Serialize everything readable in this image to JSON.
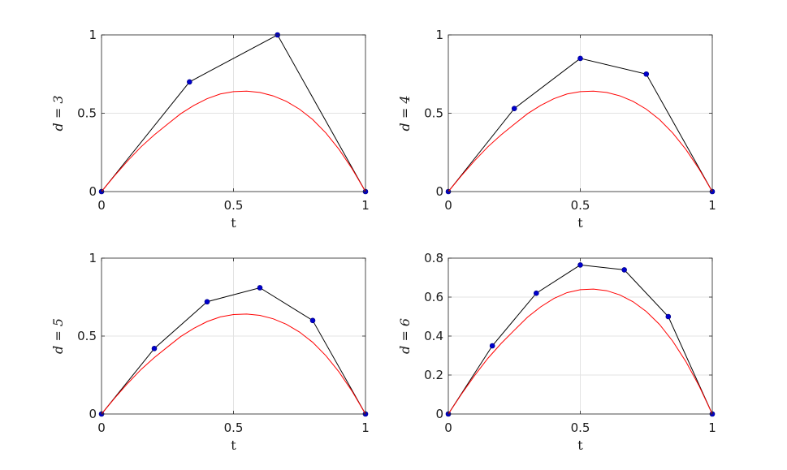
{
  "chart_data": [
    {
      "type": "line",
      "xlabel": "t",
      "ylabel": "d = 3",
      "xlim": [
        0,
        1
      ],
      "ylim": [
        0,
        1
      ],
      "xticks": [
        "0",
        "0.5",
        "1"
      ],
      "yticks": [
        "0",
        "0.5",
        "1"
      ],
      "grid": true,
      "series": [
        {
          "color": "#000000",
          "marker_color": "#0000cc",
          "x": [
            0,
            0.3333,
            0.6667,
            1
          ],
          "y": [
            0,
            0.7,
            1.0,
            0
          ]
        },
        {
          "color": "#ff0000",
          "x": [
            0,
            0.05,
            0.1,
            0.15,
            0.2,
            0.25,
            0.3,
            0.35,
            0.4,
            0.45,
            0.5,
            0.55,
            0.6,
            0.65,
            0.7,
            0.75,
            0.8,
            0.85,
            0.9,
            0.95,
            1
          ],
          "y": [
            0,
            0.102,
            0.198,
            0.286,
            0.362,
            0.43,
            0.497,
            0.55,
            0.593,
            0.623,
            0.638,
            0.641,
            0.633,
            0.611,
            0.576,
            0.526,
            0.46,
            0.374,
            0.269,
            0.144,
            0
          ]
        }
      ]
    },
    {
      "type": "line",
      "xlabel": "t",
      "ylabel": "d = 4",
      "xlim": [
        0,
        1
      ],
      "ylim": [
        0,
        1
      ],
      "xticks": [
        "0",
        "0.5",
        "1"
      ],
      "yticks": [
        "0",
        "0.5",
        "1"
      ],
      "grid": true,
      "series": [
        {
          "color": "#000000",
          "marker_color": "#0000cc",
          "x": [
            0,
            0.25,
            0.5,
            0.75,
            1
          ],
          "y": [
            0,
            0.53,
            0.85,
            0.75,
            0
          ]
        },
        {
          "color": "#ff0000",
          "x": [
            0,
            0.05,
            0.1,
            0.15,
            0.2,
            0.25,
            0.3,
            0.35,
            0.4,
            0.45,
            0.5,
            0.55,
            0.6,
            0.65,
            0.7,
            0.75,
            0.8,
            0.85,
            0.9,
            0.95,
            1
          ],
          "y": [
            0,
            0.102,
            0.198,
            0.286,
            0.362,
            0.43,
            0.497,
            0.55,
            0.593,
            0.623,
            0.638,
            0.641,
            0.633,
            0.611,
            0.576,
            0.526,
            0.46,
            0.374,
            0.269,
            0.144,
            0
          ]
        }
      ]
    },
    {
      "type": "line",
      "xlabel": "t",
      "ylabel": "d = 5",
      "xlim": [
        0,
        1
      ],
      "ylim": [
        0,
        1
      ],
      "xticks": [
        "0",
        "0.5",
        "1"
      ],
      "yticks": [
        "0",
        "0.5",
        "1"
      ],
      "grid": true,
      "series": [
        {
          "color": "#000000",
          "marker_color": "#0000cc",
          "x": [
            0,
            0.2,
            0.4,
            0.6,
            0.8,
            1
          ],
          "y": [
            0,
            0.42,
            0.72,
            0.81,
            0.6,
            0
          ]
        },
        {
          "color": "#ff0000",
          "x": [
            0,
            0.05,
            0.1,
            0.15,
            0.2,
            0.25,
            0.3,
            0.35,
            0.4,
            0.45,
            0.5,
            0.55,
            0.6,
            0.65,
            0.7,
            0.75,
            0.8,
            0.85,
            0.9,
            0.95,
            1
          ],
          "y": [
            0,
            0.102,
            0.198,
            0.286,
            0.362,
            0.43,
            0.497,
            0.55,
            0.593,
            0.623,
            0.638,
            0.641,
            0.633,
            0.611,
            0.576,
            0.526,
            0.46,
            0.374,
            0.269,
            0.144,
            0
          ]
        }
      ]
    },
    {
      "type": "line",
      "xlabel": "t",
      "ylabel": "d = 6",
      "xlim": [
        0,
        1
      ],
      "ylim": [
        0,
        0.8
      ],
      "xticks": [
        "0",
        "0.5",
        "1"
      ],
      "yticks": [
        "0",
        "0.2",
        "0.4",
        "0.6",
        "0.8"
      ],
      "grid": true,
      "series": [
        {
          "color": "#000000",
          "marker_color": "#0000cc",
          "x": [
            0,
            0.1667,
            0.3333,
            0.5,
            0.6667,
            0.8333,
            1
          ],
          "y": [
            0,
            0.35,
            0.62,
            0.765,
            0.74,
            0.5,
            0
          ]
        },
        {
          "color": "#ff0000",
          "x": [
            0,
            0.05,
            0.1,
            0.15,
            0.2,
            0.25,
            0.3,
            0.35,
            0.4,
            0.45,
            0.5,
            0.55,
            0.6,
            0.65,
            0.7,
            0.75,
            0.8,
            0.85,
            0.9,
            0.95,
            1
          ],
          "y": [
            0,
            0.102,
            0.198,
            0.286,
            0.362,
            0.43,
            0.497,
            0.55,
            0.593,
            0.623,
            0.638,
            0.641,
            0.633,
            0.611,
            0.576,
            0.526,
            0.46,
            0.374,
            0.269,
            0.144,
            0
          ]
        }
      ]
    }
  ]
}
